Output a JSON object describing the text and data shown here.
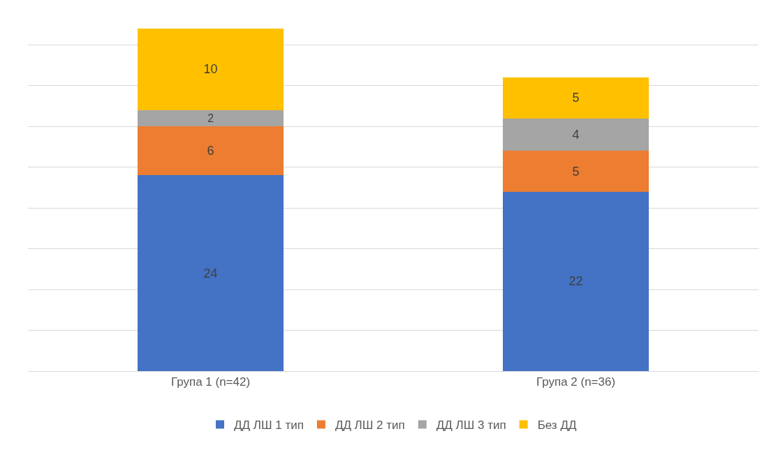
{
  "chart_data": {
    "type": "bar",
    "stacked": true,
    "categories": [
      "Група 1 (n=42)",
      "Група 2 (n=36)"
    ],
    "series": [
      {
        "name": "ДД ЛШ 1 тип",
        "color": "#4472c4",
        "values": [
          24,
          22
        ]
      },
      {
        "name": "ДД ЛШ 2 тип",
        "color": "#ed7d31",
        "values": [
          6,
          5
        ]
      },
      {
        "name": "ДД ЛШ 3 тип",
        "color": "#a5a5a5",
        "values": [
          2,
          4
        ]
      },
      {
        "name": "Без ДД",
        "color": "#ffc000",
        "values": [
          10,
          5
        ]
      }
    ],
    "data_labels": true,
    "tick_labels": "x",
    "grid": "y",
    "legend": "bottom"
  }
}
